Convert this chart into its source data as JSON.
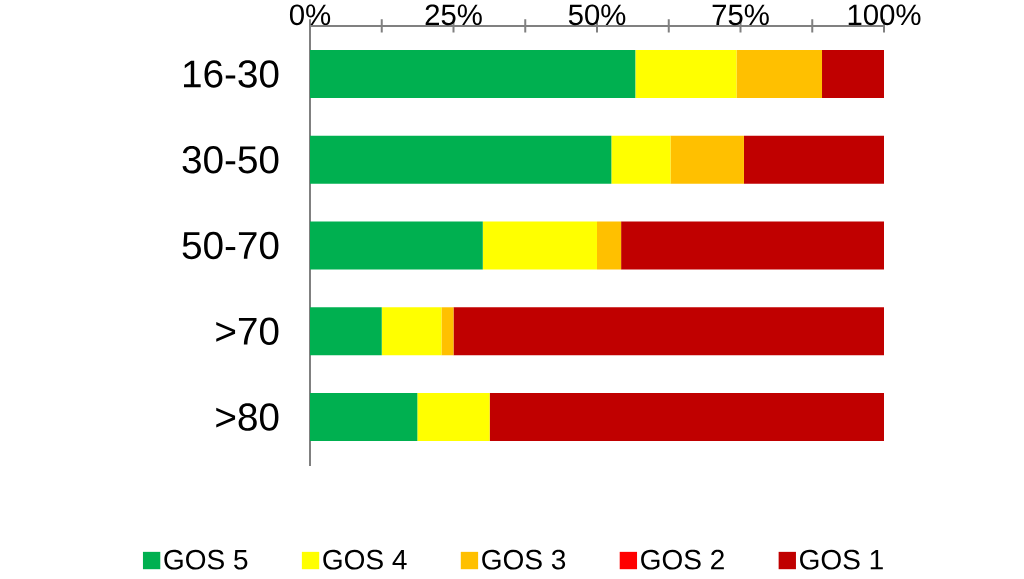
{
  "chart_data": {
    "type": "bar",
    "orientation": "horizontal",
    "stacked": true,
    "categories": [
      "16-30",
      "30-50",
      "50-70",
      ">70",
      ">80"
    ],
    "series": [
      {
        "name": "GOS 5",
        "color": "#00b050",
        "values": [
          56.7,
          52.5,
          30.1,
          12.5,
          18.7
        ]
      },
      {
        "name": "GOS 4",
        "color": "#ffff00",
        "values": [
          17.6,
          10.3,
          19.9,
          10.4,
          12.6
        ]
      },
      {
        "name": "GOS 3",
        "color": "#ffc000",
        "values": [
          14.9,
          12.8,
          4.2,
          2.1,
          0
        ]
      },
      {
        "name": "GOS 2",
        "color": "#ff0000",
        "values": [
          0,
          0,
          0,
          0,
          0
        ]
      },
      {
        "name": "GOS 1",
        "color": "#c00000",
        "values": [
          10.8,
          24.4,
          45.8,
          75.0,
          68.7
        ]
      }
    ],
    "xlim": [
      0,
      100
    ],
    "xticks": [
      {
        "value": 0,
        "label": "0%"
      },
      {
        "value": 12.5,
        "label": null
      },
      {
        "value": 25,
        "label": "25%"
      },
      {
        "value": 37.5,
        "label": null
      },
      {
        "value": 50,
        "label": "50%"
      },
      {
        "value": 62.5,
        "label": null
      },
      {
        "value": 75,
        "label": "75%"
      },
      {
        "value": 87.5,
        "label": null
      },
      {
        "value": 100,
        "label": "100%"
      }
    ],
    "legend": "bottom"
  }
}
